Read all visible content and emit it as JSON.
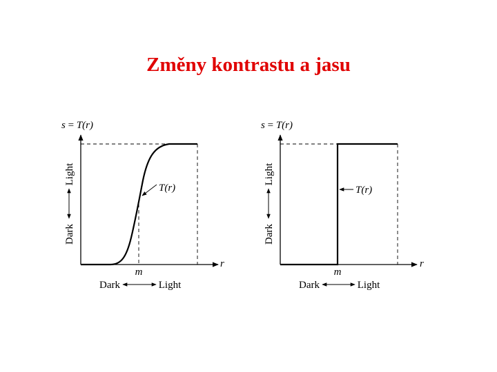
{
  "slide": {
    "title": "Změny kontrastu a jasu"
  },
  "plots": [
    {
      "name": "contrast-stretching",
      "y_label_s": "s",
      "y_label_eq": "=",
      "y_label_fn": "T(r)",
      "x_axis_label": "r",
      "x_mark": "m",
      "curve_label": "T(r)",
      "y_dark": "Dark",
      "y_light": "Light",
      "x_dark": "Dark",
      "x_light": "Light"
    },
    {
      "name": "thresholding",
      "y_label_s": "s",
      "y_label_eq": "=",
      "y_label_fn": "T(r)",
      "x_axis_label": "r",
      "x_mark": "m",
      "curve_label": "T(r)",
      "y_dark": "Dark",
      "y_light": "Light",
      "x_dark": "Dark",
      "x_light": "Light"
    }
  ]
}
